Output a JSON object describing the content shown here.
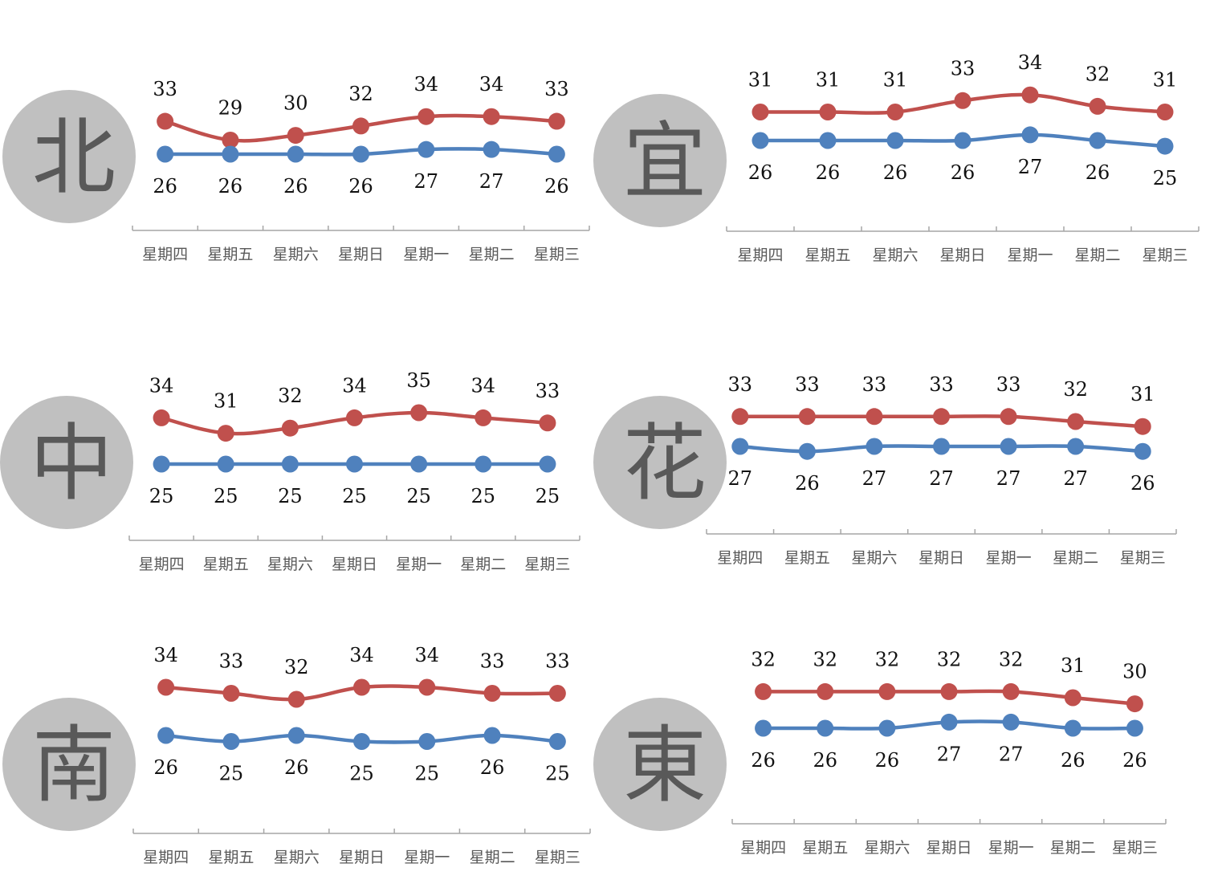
{
  "colors": {
    "high": "#c0504d",
    "low": "#4f81bd"
  },
  "chart_data": [
    {
      "type": "line",
      "region": "北",
      "categories": [
        "星期四",
        "星期五",
        "星期六",
        "星期日",
        "星期一",
        "星期二",
        "星期三"
      ],
      "series": [
        {
          "key": "high",
          "values": [
            33,
            29,
            30,
            32,
            34,
            34,
            33
          ]
        },
        {
          "key": "low",
          "values": [
            26,
            26,
            26,
            26,
            27,
            27,
            26
          ]
        }
      ],
      "grid": false
    },
    {
      "type": "line",
      "region": "宜",
      "categories": [
        "星期四",
        "星期五",
        "星期六",
        "星期日",
        "星期一",
        "星期二",
        "星期三"
      ],
      "series": [
        {
          "key": "high",
          "values": [
            31,
            31,
            31,
            33,
            34,
            32,
            31
          ]
        },
        {
          "key": "low",
          "values": [
            26,
            26,
            26,
            26,
            27,
            26,
            25
          ]
        }
      ],
      "grid": false
    },
    {
      "type": "line",
      "region": "中",
      "categories": [
        "星期四",
        "星期五",
        "星期六",
        "星期日",
        "星期一",
        "星期二",
        "星期三"
      ],
      "series": [
        {
          "key": "high",
          "values": [
            34,
            31,
            32,
            34,
            35,
            34,
            33
          ]
        },
        {
          "key": "low",
          "values": [
            25,
            25,
            25,
            25,
            25,
            25,
            25
          ]
        }
      ],
      "grid": false
    },
    {
      "type": "line",
      "region": "花",
      "categories": [
        "星期四",
        "星期五",
        "星期六",
        "星期日",
        "星期一",
        "星期二",
        "星期三"
      ],
      "series": [
        {
          "key": "high",
          "values": [
            33,
            33,
            33,
            33,
            33,
            32,
            31
          ]
        },
        {
          "key": "low",
          "values": [
            27,
            26,
            27,
            27,
            27,
            27,
            26
          ]
        }
      ],
      "grid": false
    },
    {
      "type": "line",
      "region": "南",
      "categories": [
        "星期四",
        "星期五",
        "星期六",
        "星期日",
        "星期一",
        "星期二",
        "星期三"
      ],
      "series": [
        {
          "key": "high",
          "values": [
            34,
            33,
            32,
            34,
            34,
            33,
            33
          ]
        },
        {
          "key": "low",
          "values": [
            26,
            25,
            26,
            25,
            25,
            26,
            25
          ]
        }
      ],
      "grid": false
    },
    {
      "type": "line",
      "region": "東",
      "categories": [
        "星期四",
        "星期五",
        "星期六",
        "星期日",
        "星期一",
        "星期二",
        "星期三"
      ],
      "series": [
        {
          "key": "high",
          "values": [
            32,
            32,
            32,
            32,
            32,
            31,
            30
          ]
        },
        {
          "key": "low",
          "values": [
            26,
            26,
            26,
            27,
            27,
            26,
            26
          ]
        }
      ],
      "grid": false
    }
  ]
}
